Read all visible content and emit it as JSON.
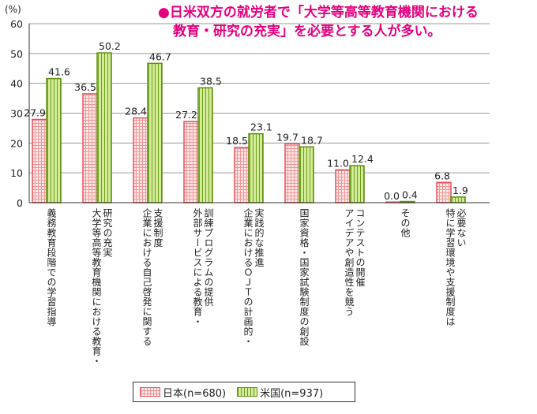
{
  "chart_data": {
    "type": "bar",
    "title_lines": [
      "●日米双方の就労者で「大学等高等教育機関における",
      "教育・研究の充実」を必要とする人が多い。"
    ],
    "ylabel": "(%)",
    "ylim": [
      0,
      60
    ],
    "yticks": [
      0,
      10,
      20,
      30,
      40,
      50,
      60
    ],
    "grid": true,
    "legend_position": "bottom",
    "categories": [
      "義務教育段階での学習指導",
      "大学等高等教育機関における教育・研究の充実",
      "企業における自己啓発に関する支援制度",
      "外部サービスによる教育・訓練プログラムの提供",
      "企業におけるＯＪＴの計画的・実践的な推進",
      "国家資格・国家試験制度の創設",
      "アイデアや創造性を競うコンテストの開催",
      "その他",
      "特に学習環境や支援制度は必要ない"
    ],
    "category_label_lines": [
      [
        "義務教育段階での学習指導"
      ],
      [
        "大学等高等教育機関における教育・",
        "研究の充実"
      ],
      [
        "企業における自己啓発に関する",
        "支援制度"
      ],
      [
        "外部サービスによる教育・",
        "訓練プログラムの提供"
      ],
      [
        "企業におけるＯＪＴの計画的・",
        "実践的な推進"
      ],
      [
        "国家資格・国家試験制度の創設"
      ],
      [
        "アイデアや創造性を競う",
        "コンテストの開催"
      ],
      [
        "その他"
      ],
      [
        "特に学習環境や支援制度は",
        "必要ない"
      ]
    ],
    "series": [
      {
        "name": "日本(n=680)",
        "values": [
          27.9,
          36.5,
          28.4,
          27.2,
          18.5,
          19.7,
          11.0,
          0.0,
          6.8
        ],
        "color": "#e8505b",
        "fill": "#fde9e6"
      },
      {
        "name": "米国(n=937)",
        "values": [
          41.6,
          50.2,
          46.7,
          38.5,
          23.1,
          18.7,
          12.4,
          0.4,
          1.9
        ],
        "color": "#5f8f12",
        "fill": "#d4ec99"
      }
    ]
  }
}
